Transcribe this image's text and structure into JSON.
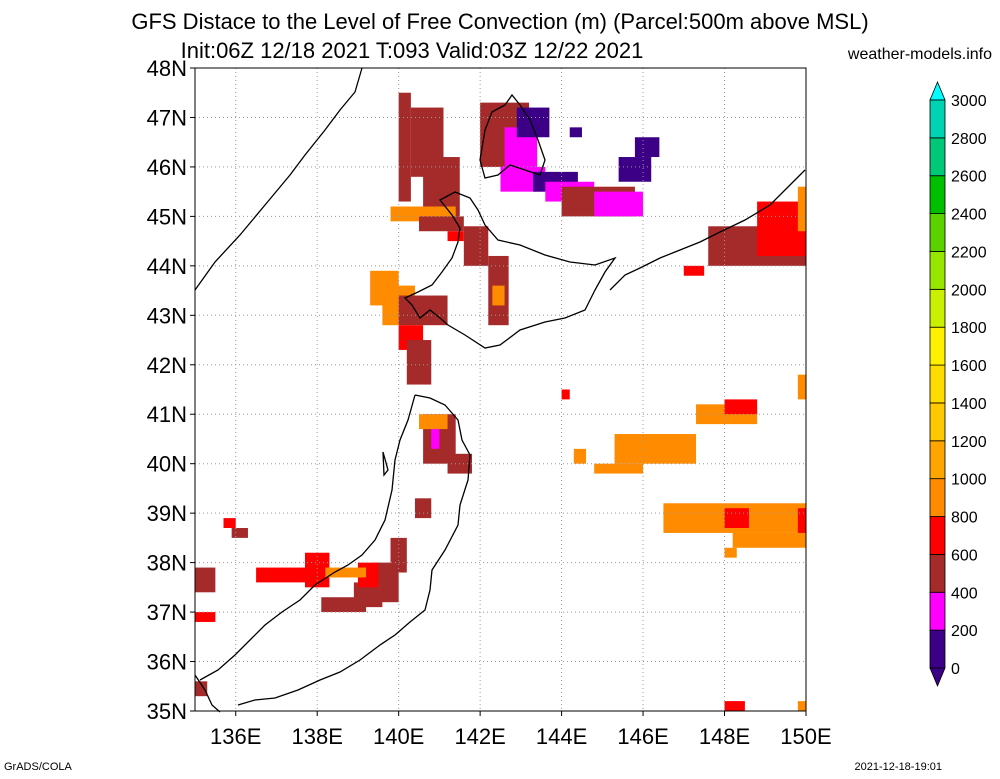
{
  "title": {
    "line1": "GFS Distace to the Level of Free Convection (m) (Parcel:500m above MSL)",
    "line2": "Init:06Z 12/18 2021 T:093 Valid:03Z 12/22 2021",
    "credit": "weather-models.info"
  },
  "footer": {
    "left": "GrADS/COLA",
    "right": "2021-12-18-19:01"
  },
  "map": {
    "lon_range": [
      135,
      150
    ],
    "lat_range": [
      35,
      48
    ],
    "lat_labels": [
      "35N",
      "36N",
      "37N",
      "38N",
      "39N",
      "40N",
      "41N",
      "42N",
      "43N",
      "44N",
      "45N",
      "46N",
      "47N",
      "48N"
    ],
    "lon_labels": [
      "136E",
      "138E",
      "140E",
      "142E",
      "144E",
      "146E",
      "148E",
      "150E"
    ],
    "lon_ticks": [
      136,
      138,
      140,
      142,
      144,
      146,
      148,
      150
    ]
  },
  "colorbar": {
    "labels": [
      "0",
      "200",
      "400",
      "600",
      "800",
      "1000",
      "1200",
      "1400",
      "1600",
      "1800",
      "2000",
      "2200",
      "2400",
      "2600",
      "2800",
      "3000"
    ],
    "colors": [
      "#3c0087",
      "#ff00ff",
      "#a52a2a",
      "#ff0000",
      "#ff8c00",
      "#ffa500",
      "#ffc800",
      "#ffdc00",
      "#fff000",
      "#c8f000",
      "#96e600",
      "#5ad200",
      "#00be00",
      "#00c878",
      "#00d2b4",
      "#00e6dc",
      "#00ffff"
    ]
  },
  "legend_colors": {
    "purple": "#3c0087",
    "magenta": "#ff00ff",
    "brown": "#a52a2a",
    "red": "#ff0000",
    "orange": "#ff8c00",
    "light_orange": "#ffa500"
  }
}
